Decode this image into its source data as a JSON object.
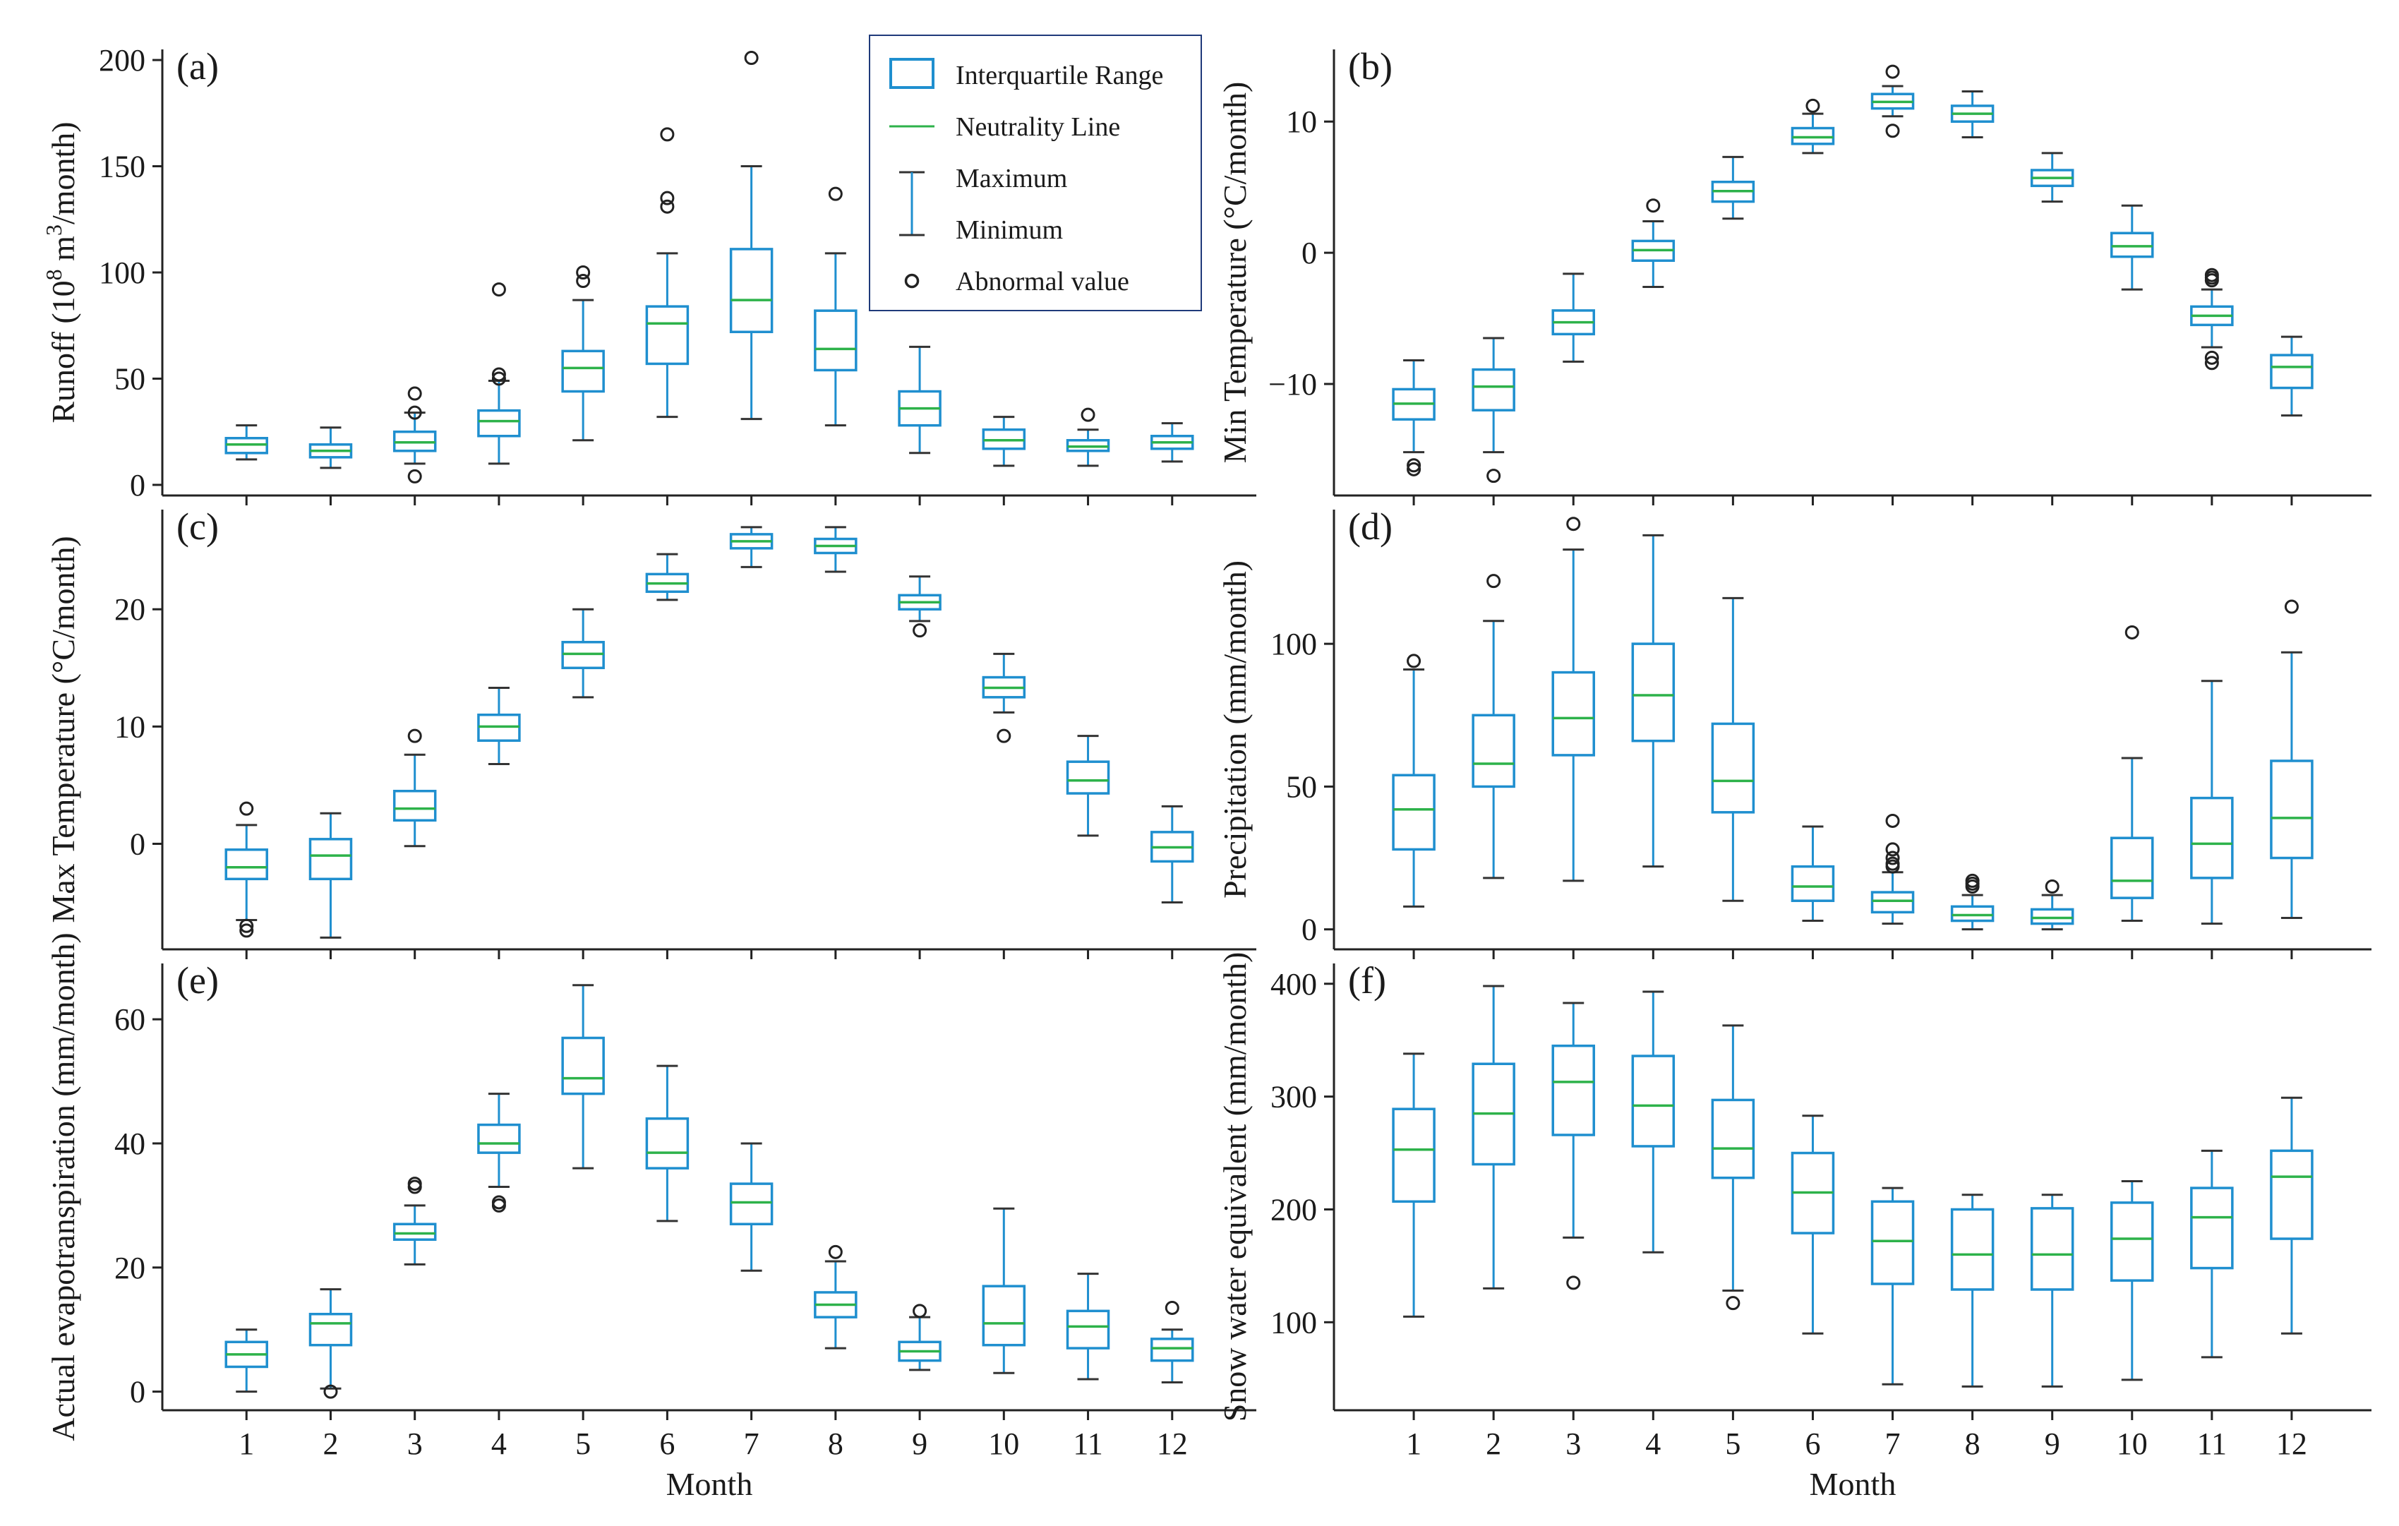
{
  "colors": {
    "box": "#1f8fcf",
    "median": "#2db24a",
    "whisker_cap": "#333333",
    "outlier": "#222222",
    "axis": "#222222",
    "legend_border": "#1f3a7a"
  },
  "chart_data": [
    {
      "id": "a",
      "type": "box",
      "panel_label": "(a)",
      "ylabel": "Runoff (10^8 m^3/month)",
      "ylabel_parts": {
        "base": "Runoff (10",
        "exp1": "8",
        "mid": " m",
        "exp2": "3",
        "end": "/month)"
      },
      "xlabel": "",
      "x_tick_labels_visible": false,
      "categories": [
        "1",
        "2",
        "3",
        "4",
        "5",
        "6",
        "7",
        "8",
        "9",
        "10",
        "11",
        "12"
      ],
      "ylim": [
        -5,
        205
      ],
      "yticks": [
        0,
        50,
        100,
        150,
        200
      ],
      "boxes": [
        {
          "min": 12,
          "q1": 15,
          "median": 19,
          "q3": 22,
          "max": 28,
          "outliers": []
        },
        {
          "min": 8,
          "q1": 13,
          "median": 16,
          "q3": 19,
          "max": 27,
          "outliers": []
        },
        {
          "min": 10,
          "q1": 16,
          "median": 20,
          "q3": 25,
          "max": 34,
          "outliers": [
            43,
            34,
            4
          ]
        },
        {
          "min": 10,
          "q1": 23,
          "median": 30,
          "q3": 35,
          "max": 49,
          "outliers": [
            92,
            52,
            50
          ]
        },
        {
          "min": 21,
          "q1": 44,
          "median": 55,
          "q3": 63,
          "max": 87,
          "outliers": [
            100,
            96
          ]
        },
        {
          "min": 32,
          "q1": 57,
          "median": 76,
          "q3": 84,
          "max": 109,
          "outliers": [
            165,
            135,
            131
          ]
        },
        {
          "min": 31,
          "q1": 72,
          "median": 87,
          "q3": 111,
          "max": 150,
          "outliers": [
            201
          ]
        },
        {
          "min": 28,
          "q1": 54,
          "median": 64,
          "q3": 82,
          "max": 109,
          "outliers": [
            137
          ]
        },
        {
          "min": 15,
          "q1": 28,
          "median": 36,
          "q3": 44,
          "max": 65,
          "outliers": []
        },
        {
          "min": 9,
          "q1": 17,
          "median": 21,
          "q3": 26,
          "max": 32,
          "outliers": []
        },
        {
          "min": 9,
          "q1": 16,
          "median": 18,
          "q3": 21,
          "max": 26,
          "outliers": [
            33
          ]
        },
        {
          "min": 11,
          "q1": 17,
          "median": 20,
          "q3": 23,
          "max": 29,
          "outliers": []
        }
      ]
    },
    {
      "id": "b",
      "type": "box",
      "panel_label": "(b)",
      "ylabel": "Min Temperature (°C/month)",
      "xlabel": "",
      "x_tick_labels_visible": false,
      "categories": [
        "1",
        "2",
        "3",
        "4",
        "5",
        "6",
        "7",
        "8",
        "9",
        "10",
        "11",
        "12"
      ],
      "ylim": [
        -18.5,
        15.5
      ],
      "yticks": [
        -10,
        0,
        10
      ],
      "ytick_labels": [
        "−10",
        "0",
        "10"
      ],
      "boxes": [
        {
          "min": -15.2,
          "q1": -12.7,
          "median": -11.5,
          "q3": -10.4,
          "max": -8.2,
          "outliers": [
            -16.2,
            -16.5
          ]
        },
        {
          "min": -15.2,
          "q1": -12.0,
          "median": -10.2,
          "q3": -8.9,
          "max": -6.5,
          "outliers": [
            -17.0
          ]
        },
        {
          "min": -8.3,
          "q1": -6.2,
          "median": -5.3,
          "q3": -4.4,
          "max": -1.6,
          "outliers": []
        },
        {
          "min": -2.6,
          "q1": -0.6,
          "median": 0.2,
          "q3": 0.9,
          "max": 2.4,
          "outliers": [
            3.6
          ]
        },
        {
          "min": 2.6,
          "q1": 3.9,
          "median": 4.7,
          "q3": 5.4,
          "max": 7.3,
          "outliers": []
        },
        {
          "min": 7.6,
          "q1": 8.3,
          "median": 8.8,
          "q3": 9.5,
          "max": 10.6,
          "outliers": [
            11.2
          ]
        },
        {
          "min": 10.4,
          "q1": 11.0,
          "median": 11.5,
          "q3": 12.1,
          "max": 12.7,
          "outliers": [
            13.8,
            9.3
          ]
        },
        {
          "min": 8.8,
          "q1": 10.0,
          "median": 10.6,
          "q3": 11.2,
          "max": 12.3,
          "outliers": []
        },
        {
          "min": 3.9,
          "q1": 5.1,
          "median": 5.7,
          "q3": 6.3,
          "max": 7.6,
          "outliers": []
        },
        {
          "min": -2.8,
          "q1": -0.3,
          "median": 0.5,
          "q3": 1.5,
          "max": 3.6,
          "outliers": []
        },
        {
          "min": -7.2,
          "q1": -5.5,
          "median": -4.8,
          "q3": -4.1,
          "max": -2.8,
          "outliers": [
            -1.7,
            -1.9,
            -2.1,
            -8.0,
            -8.4
          ]
        },
        {
          "min": -12.4,
          "q1": -10.3,
          "median": -8.7,
          "q3": -7.8,
          "max": -6.4,
          "outliers": []
        }
      ]
    },
    {
      "id": "c",
      "type": "box",
      "panel_label": "(c)",
      "ylabel": "Max Temperature (°C/month)",
      "xlabel": "",
      "x_tick_labels_visible": false,
      "categories": [
        "1",
        "2",
        "3",
        "4",
        "5",
        "6",
        "7",
        "8",
        "9",
        "10",
        "11",
        "12"
      ],
      "ylim": [
        -9,
        28.5
      ],
      "yticks": [
        0,
        10,
        20
      ],
      "ytick_labels": [
        "0",
        "10",
        "20"
      ],
      "boxes": [
        {
          "min": -6.5,
          "q1": -3.0,
          "median": -2.0,
          "q3": -0.5,
          "max": 1.6,
          "outliers": [
            3.0,
            -7.0,
            -7.4
          ]
        },
        {
          "min": -8.0,
          "q1": -3.0,
          "median": -1.0,
          "q3": 0.4,
          "max": 2.6,
          "outliers": []
        },
        {
          "min": -0.2,
          "q1": 2.0,
          "median": 3.0,
          "q3": 4.5,
          "max": 7.6,
          "outliers": [
            9.2
          ]
        },
        {
          "min": 6.8,
          "q1": 8.8,
          "median": 10.0,
          "q3": 11.0,
          "max": 13.3,
          "outliers": []
        },
        {
          "min": 12.5,
          "q1": 15.0,
          "median": 16.2,
          "q3": 17.2,
          "max": 20.0,
          "outliers": []
        },
        {
          "min": 20.8,
          "q1": 21.5,
          "median": 22.2,
          "q3": 23.0,
          "max": 24.7,
          "outliers": []
        },
        {
          "min": 23.6,
          "q1": 25.2,
          "median": 25.8,
          "q3": 26.4,
          "max": 27.0,
          "outliers": []
        },
        {
          "min": 23.2,
          "q1": 24.8,
          "median": 25.4,
          "q3": 26.0,
          "max": 27.0,
          "outliers": []
        },
        {
          "min": 19.0,
          "q1": 20.0,
          "median": 20.6,
          "q3": 21.2,
          "max": 22.8,
          "outliers": [
            18.2
          ]
        },
        {
          "min": 11.2,
          "q1": 12.5,
          "median": 13.3,
          "q3": 14.2,
          "max": 16.2,
          "outliers": [
            9.2
          ]
        },
        {
          "min": 0.7,
          "q1": 4.3,
          "median": 5.4,
          "q3": 7.0,
          "max": 9.2,
          "outliers": []
        },
        {
          "min": -5.0,
          "q1": -1.5,
          "median": -0.3,
          "q3": 1.0,
          "max": 3.2,
          "outliers": []
        }
      ]
    },
    {
      "id": "d",
      "type": "box",
      "panel_label": "(d)",
      "ylabel": "Precipitation (mm/month)",
      "xlabel": "",
      "x_tick_labels_visible": false,
      "categories": [
        "1",
        "2",
        "3",
        "4",
        "5",
        "6",
        "7",
        "8",
        "9",
        "10",
        "11",
        "12"
      ],
      "ylim": [
        -7,
        147
      ],
      "yticks": [
        0,
        50,
        100
      ],
      "boxes": [
        {
          "min": 8,
          "q1": 28,
          "median": 42,
          "q3": 54,
          "max": 91,
          "outliers": [
            94
          ]
        },
        {
          "min": 18,
          "q1": 50,
          "median": 58,
          "q3": 75,
          "max": 108,
          "outliers": [
            122
          ]
        },
        {
          "min": 17,
          "q1": 61,
          "median": 74,
          "q3": 90,
          "max": 133,
          "outliers": [
            142
          ]
        },
        {
          "min": 22,
          "q1": 66,
          "median": 82,
          "q3": 100,
          "max": 138,
          "outliers": []
        },
        {
          "min": 10,
          "q1": 41,
          "median": 52,
          "q3": 72,
          "max": 116,
          "outliers": []
        },
        {
          "min": 3,
          "q1": 10,
          "median": 15,
          "q3": 22,
          "max": 36,
          "outliers": []
        },
        {
          "min": 2,
          "q1": 6,
          "median": 10,
          "q3": 13,
          "max": 20,
          "outliers": [
            38,
            28,
            25,
            23,
            22
          ]
        },
        {
          "min": 0,
          "q1": 3,
          "median": 5,
          "q3": 8,
          "max": 12,
          "outliers": [
            17,
            16,
            15
          ]
        },
        {
          "min": 0,
          "q1": 2,
          "median": 4,
          "q3": 7,
          "max": 12,
          "outliers": [
            15
          ]
        },
        {
          "min": 3,
          "q1": 11,
          "median": 17,
          "q3": 32,
          "max": 60,
          "outliers": [
            104
          ]
        },
        {
          "min": 2,
          "q1": 18,
          "median": 30,
          "q3": 46,
          "max": 87,
          "outliers": []
        },
        {
          "min": 4,
          "q1": 25,
          "median": 39,
          "q3": 59,
          "max": 97,
          "outliers": [
            113
          ]
        }
      ]
    },
    {
      "id": "e",
      "type": "box",
      "panel_label": "(e)",
      "ylabel": "Actual evapotranspiration (mm/month)",
      "xlabel": "Month",
      "x_tick_labels_visible": true,
      "categories": [
        "1",
        "2",
        "3",
        "4",
        "5",
        "6",
        "7",
        "8",
        "9",
        "10",
        "11",
        "12"
      ],
      "ylim": [
        -3,
        69
      ],
      "yticks": [
        0,
        20,
        40,
        60
      ],
      "boxes": [
        {
          "min": 0,
          "q1": 4.0,
          "median": 6.0,
          "q3": 8.0,
          "max": 10.0,
          "outliers": []
        },
        {
          "min": 0.5,
          "q1": 7.5,
          "median": 11.0,
          "q3": 12.5,
          "max": 16.5,
          "outliers": [
            0.0
          ]
        },
        {
          "min": 20.5,
          "q1": 24.5,
          "median": 25.5,
          "q3": 27.0,
          "max": 30.0,
          "outliers": [
            33.5,
            33.0
          ]
        },
        {
          "min": 33.0,
          "q1": 38.5,
          "median": 40.0,
          "q3": 43.0,
          "max": 48.0,
          "outliers": [
            30.5,
            30.0
          ]
        },
        {
          "min": 36.0,
          "q1": 48.0,
          "median": 50.5,
          "q3": 57.0,
          "max": 65.5,
          "outliers": []
        },
        {
          "min": 27.5,
          "q1": 36.0,
          "median": 38.5,
          "q3": 44.0,
          "max": 52.5,
          "outliers": []
        },
        {
          "min": 19.5,
          "q1": 27.0,
          "median": 30.5,
          "q3": 33.5,
          "max": 40.0,
          "outliers": []
        },
        {
          "min": 7.0,
          "q1": 12.0,
          "median": 14.0,
          "q3": 16.0,
          "max": 21.0,
          "outliers": [
            22.5
          ]
        },
        {
          "min": 3.5,
          "q1": 5.0,
          "median": 6.5,
          "q3": 8.0,
          "max": 12.0,
          "outliers": [
            13.0
          ]
        },
        {
          "min": 3.0,
          "q1": 7.5,
          "median": 11.0,
          "q3": 17.0,
          "max": 29.5,
          "outliers": []
        },
        {
          "min": 2.0,
          "q1": 7.0,
          "median": 10.5,
          "q3": 13.0,
          "max": 19.0,
          "outliers": []
        },
        {
          "min": 1.5,
          "q1": 5.0,
          "median": 7.0,
          "q3": 8.5,
          "max": 10.0,
          "outliers": [
            13.5
          ]
        }
      ]
    },
    {
      "id": "f",
      "type": "box",
      "panel_label": "(f)",
      "ylabel": "Snow water equivalent (mm/month)",
      "xlabel": "Month",
      "x_tick_labels_visible": true,
      "categories": [
        "1",
        "2",
        "3",
        "4",
        "5",
        "6",
        "7",
        "8",
        "9",
        "10",
        "11",
        "12"
      ],
      "ylim": [
        22,
        418
      ],
      "yticks": [
        100,
        200,
        300,
        400
      ],
      "boxes": [
        {
          "min": 105,
          "q1": 207,
          "median": 253,
          "q3": 289,
          "max": 338,
          "outliers": []
        },
        {
          "min": 130,
          "q1": 240,
          "median": 285,
          "q3": 329,
          "max": 398,
          "outliers": []
        },
        {
          "min": 175,
          "q1": 266,
          "median": 313,
          "q3": 345,
          "max": 383,
          "outliers": [
            135
          ]
        },
        {
          "min": 162,
          "q1": 256,
          "median": 292,
          "q3": 336,
          "max": 393,
          "outliers": []
        },
        {
          "min": 128,
          "q1": 228,
          "median": 254,
          "q3": 297,
          "max": 363,
          "outliers": [
            117
          ]
        },
        {
          "min": 90,
          "q1": 179,
          "median": 215,
          "q3": 250,
          "max": 283,
          "outliers": []
        },
        {
          "min": 45,
          "q1": 134,
          "median": 172,
          "q3": 207,
          "max": 219,
          "outliers": []
        },
        {
          "min": 43,
          "q1": 129,
          "median": 160,
          "q3": 200,
          "max": 213,
          "outliers": []
        },
        {
          "min": 43,
          "q1": 129,
          "median": 160,
          "q3": 201,
          "max": 213,
          "outliers": []
        },
        {
          "min": 49,
          "q1": 137,
          "median": 174,
          "q3": 206,
          "max": 225,
          "outliers": []
        },
        {
          "min": 69,
          "q1": 148,
          "median": 193,
          "q3": 219,
          "max": 252,
          "outliers": []
        },
        {
          "min": 90,
          "q1": 174,
          "median": 229,
          "q3": 252,
          "max": 299,
          "outliers": []
        }
      ]
    }
  ],
  "legend": {
    "items": [
      {
        "key": "iqr",
        "label": "Interquartile Range"
      },
      {
        "key": "median",
        "label": "Neutrality Line"
      },
      {
        "key": "max",
        "label": "Maximum"
      },
      {
        "key": "min",
        "label": "Minimum"
      },
      {
        "key": "outlier",
        "label": "Abnormal value"
      }
    ]
  }
}
